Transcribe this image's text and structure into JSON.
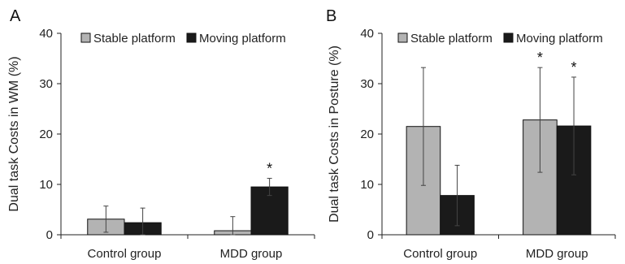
{
  "figure": {
    "colors": {
      "stable": "#b3b3b3",
      "moving": "#1a1a1a",
      "axis": "#222222",
      "errorbar": "#444444"
    }
  },
  "chart_data": [
    {
      "type": "bar",
      "panel_label": "A",
      "categories": [
        "Control group",
        "MDD group"
      ],
      "ylabel": "Dual task Costs in WM (%)",
      "xlabel": "",
      "ylim": [
        0,
        40
      ],
      "yticks": [
        "0",
        "10",
        "20",
        "30",
        "40"
      ],
      "grid": false,
      "legend_position": "top",
      "series": [
        {
          "name": "Stable platform",
          "values": [
            3.1,
            0.8
          ],
          "error": [
            2.6,
            2.8
          ],
          "significance": [
            "",
            ""
          ]
        },
        {
          "name": "Moving platform",
          "values": [
            2.4,
            9.5
          ],
          "error": [
            2.9,
            1.7
          ],
          "significance": [
            "",
            "*"
          ]
        }
      ]
    },
    {
      "type": "bar",
      "panel_label": "B",
      "categories": [
        "Control group",
        "MDD group"
      ],
      "ylabel": "Dual task Costs in Posture (%)",
      "xlabel": "",
      "ylim": [
        0,
        40
      ],
      "yticks": [
        "0",
        "10",
        "20",
        "30",
        "40"
      ],
      "grid": false,
      "legend_position": "top",
      "series": [
        {
          "name": "Stable platform",
          "values": [
            21.5,
            22.8
          ],
          "error": [
            11.7,
            10.4
          ],
          "significance": [
            "",
            "*"
          ]
        },
        {
          "name": "Moving platform",
          "values": [
            7.8,
            21.6
          ],
          "error": [
            6.0,
            9.7
          ],
          "significance": [
            "",
            "*"
          ]
        }
      ]
    }
  ]
}
